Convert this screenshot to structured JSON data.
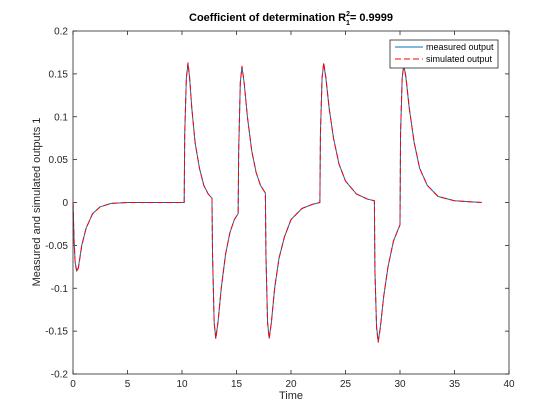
{
  "chart_data": {
    "type": "line",
    "title": "Coefficient of determination R",
    "title_sup": "2",
    "title_sub": "1",
    "title_suffix": "= 0.9999",
    "xlabel": "Time",
    "ylabel": "Measured and simulated outputs 1",
    "xlim": [
      0,
      40
    ],
    "ylim": [
      -0.2,
      0.2
    ],
    "xticks": [
      0,
      5,
      10,
      15,
      20,
      25,
      30,
      35,
      40
    ],
    "yticks": [
      -0.2,
      -0.15,
      -0.1,
      -0.05,
      0,
      0.05,
      0.1,
      0.15,
      0.2
    ],
    "xtick_labels": [
      "0",
      "5",
      "10",
      "15",
      "20",
      "25",
      "30",
      "35",
      "40"
    ],
    "ytick_labels": [
      "-0.2",
      "-0.15",
      "-0.1",
      "-0.05",
      "0",
      "0.05",
      "0.1",
      "0.15",
      "0.2"
    ],
    "grid": false,
    "legend_position": "top-right",
    "series": [
      {
        "name": "measured output",
        "color": "#0072BD",
        "style": "solid",
        "points": [
          [
            0,
            0
          ],
          [
            0.1,
            -0.045
          ],
          [
            0.2,
            -0.07
          ],
          [
            0.35,
            -0.08
          ],
          [
            0.5,
            -0.075
          ],
          [
            0.8,
            -0.05
          ],
          [
            1.2,
            -0.03
          ],
          [
            1.8,
            -0.013
          ],
          [
            2.5,
            -0.005
          ],
          [
            3.5,
            -0.001
          ],
          [
            5,
            0
          ],
          [
            10.2,
            0
          ],
          [
            10.25,
            0.08
          ],
          [
            10.4,
            0.145
          ],
          [
            10.55,
            0.162
          ],
          [
            10.7,
            0.145
          ],
          [
            10.9,
            0.11
          ],
          [
            11.2,
            0.07
          ],
          [
            11.6,
            0.04
          ],
          [
            12.0,
            0.02
          ],
          [
            12.4,
            0.01
          ],
          [
            12.75,
            0.005
          ],
          [
            12.8,
            -0.06
          ],
          [
            12.95,
            -0.14
          ],
          [
            13.1,
            -0.158
          ],
          [
            13.3,
            -0.14
          ],
          [
            13.6,
            -0.1
          ],
          [
            14.0,
            -0.06
          ],
          [
            14.4,
            -0.035
          ],
          [
            14.8,
            -0.02
          ],
          [
            15.15,
            -0.013
          ],
          [
            15.2,
            0.06
          ],
          [
            15.35,
            0.14
          ],
          [
            15.5,
            0.158
          ],
          [
            15.7,
            0.14
          ],
          [
            16.0,
            0.1
          ],
          [
            16.4,
            0.06
          ],
          [
            16.8,
            0.035
          ],
          [
            17.2,
            0.02
          ],
          [
            17.65,
            0.011
          ],
          [
            17.7,
            -0.06
          ],
          [
            17.85,
            -0.14
          ],
          [
            18.0,
            -0.158
          ],
          [
            18.2,
            -0.14
          ],
          [
            18.5,
            -0.1
          ],
          [
            18.9,
            -0.065
          ],
          [
            19.4,
            -0.04
          ],
          [
            20.0,
            -0.02
          ],
          [
            21.0,
            -0.007
          ],
          [
            22.0,
            -0.002
          ],
          [
            22.65,
            0
          ],
          [
            22.7,
            0.08
          ],
          [
            22.85,
            0.145
          ],
          [
            23.0,
            0.162
          ],
          [
            23.2,
            0.145
          ],
          [
            23.5,
            0.11
          ],
          [
            23.9,
            0.075
          ],
          [
            24.4,
            0.045
          ],
          [
            25.0,
            0.025
          ],
          [
            26.0,
            0.01
          ],
          [
            27.0,
            0.004
          ],
          [
            27.65,
            0.002
          ],
          [
            27.7,
            -0.08
          ],
          [
            27.85,
            -0.145
          ],
          [
            28.0,
            -0.162
          ],
          [
            28.2,
            -0.145
          ],
          [
            28.5,
            -0.11
          ],
          [
            28.9,
            -0.075
          ],
          [
            29.4,
            -0.045
          ],
          [
            30.0,
            -0.026
          ],
          [
            30.05,
            0.08
          ],
          [
            30.2,
            0.145
          ],
          [
            30.35,
            0.16
          ],
          [
            30.55,
            0.145
          ],
          [
            30.85,
            0.11
          ],
          [
            31.3,
            0.07
          ],
          [
            31.8,
            0.04
          ],
          [
            32.5,
            0.02
          ],
          [
            33.5,
            0.007
          ],
          [
            35,
            0.002
          ],
          [
            37.5,
            0
          ]
        ]
      },
      {
        "name": "simulated output",
        "color": "#FF0000",
        "style": "dashed",
        "points": [
          [
            0,
            0
          ],
          [
            0.1,
            -0.046
          ],
          [
            0.2,
            -0.071
          ],
          [
            0.35,
            -0.081
          ],
          [
            0.5,
            -0.076
          ],
          [
            0.8,
            -0.051
          ],
          [
            1.2,
            -0.03
          ],
          [
            1.8,
            -0.013
          ],
          [
            2.5,
            -0.005
          ],
          [
            3.5,
            -0.001
          ],
          [
            5,
            0
          ],
          [
            10.2,
            0
          ],
          [
            10.25,
            0.08
          ],
          [
            10.4,
            0.146
          ],
          [
            10.55,
            0.163
          ],
          [
            10.7,
            0.146
          ],
          [
            10.9,
            0.11
          ],
          [
            11.2,
            0.07
          ],
          [
            11.6,
            0.04
          ],
          [
            12.0,
            0.02
          ],
          [
            12.4,
            0.01
          ],
          [
            12.75,
            0.005
          ],
          [
            12.8,
            -0.06
          ],
          [
            12.95,
            -0.14
          ],
          [
            13.1,
            -0.159
          ],
          [
            13.3,
            -0.14
          ],
          [
            13.6,
            -0.1
          ],
          [
            14.0,
            -0.06
          ],
          [
            14.4,
            -0.035
          ],
          [
            14.8,
            -0.02
          ],
          [
            15.15,
            -0.013
          ],
          [
            15.2,
            0.06
          ],
          [
            15.35,
            0.14
          ],
          [
            15.5,
            0.159
          ],
          [
            15.7,
            0.14
          ],
          [
            16.0,
            0.1
          ],
          [
            16.4,
            0.06
          ],
          [
            16.8,
            0.035
          ],
          [
            17.2,
            0.02
          ],
          [
            17.65,
            0.011
          ],
          [
            17.7,
            -0.06
          ],
          [
            17.85,
            -0.14
          ],
          [
            18.0,
            -0.159
          ],
          [
            18.2,
            -0.14
          ],
          [
            18.5,
            -0.1
          ],
          [
            18.9,
            -0.065
          ],
          [
            19.4,
            -0.04
          ],
          [
            20.0,
            -0.02
          ],
          [
            21.0,
            -0.007
          ],
          [
            22.0,
            -0.002
          ],
          [
            22.65,
            0
          ],
          [
            22.7,
            0.08
          ],
          [
            22.85,
            0.146
          ],
          [
            23.0,
            0.163
          ],
          [
            23.2,
            0.146
          ],
          [
            23.5,
            0.11
          ],
          [
            23.9,
            0.075
          ],
          [
            24.4,
            0.045
          ],
          [
            25.0,
            0.025
          ],
          [
            26.0,
            0.01
          ],
          [
            27.0,
            0.004
          ],
          [
            27.65,
            0.002
          ],
          [
            27.7,
            -0.08
          ],
          [
            27.85,
            -0.146
          ],
          [
            28.0,
            -0.163
          ],
          [
            28.2,
            -0.146
          ],
          [
            28.5,
            -0.11
          ],
          [
            28.9,
            -0.075
          ],
          [
            29.4,
            -0.045
          ],
          [
            30.0,
            -0.026
          ],
          [
            30.05,
            0.08
          ],
          [
            30.2,
            0.146
          ],
          [
            30.35,
            0.161
          ],
          [
            30.55,
            0.146
          ],
          [
            30.85,
            0.11
          ],
          [
            31.3,
            0.07
          ],
          [
            31.8,
            0.04
          ],
          [
            32.5,
            0.02
          ],
          [
            33.5,
            0.007
          ],
          [
            35,
            0.002
          ],
          [
            37.5,
            0
          ]
        ]
      }
    ]
  }
}
